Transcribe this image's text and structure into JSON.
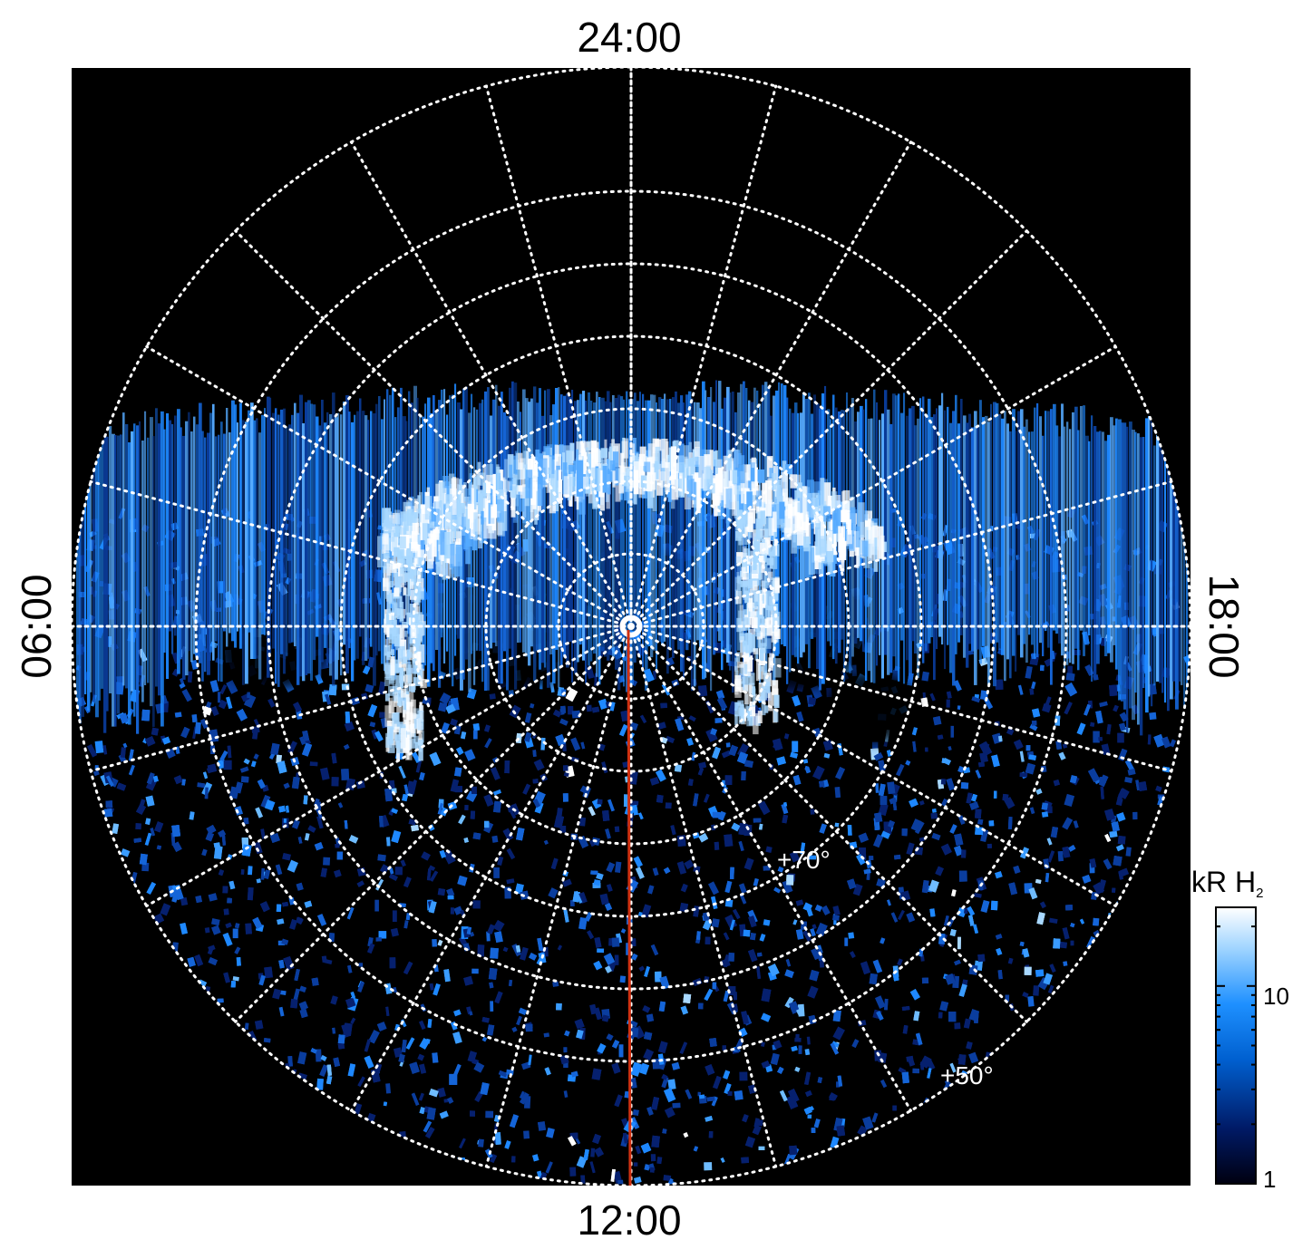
{
  "labels": {
    "top": "24:00",
    "bottom": "12:00",
    "left": "06:00",
    "right": "18:00",
    "lat70": "+70°",
    "lat50": "+50°"
  },
  "colorbar": {
    "title_main": "kR H",
    "title_sub": "2",
    "tick_labels": [
      "10",
      "1"
    ],
    "scale": "log",
    "colors": [
      "#000010",
      "#001a66",
      "#0060d0",
      "#1e90ff",
      "#9fd4ff",
      "#ffffff"
    ]
  },
  "image": {
    "background": "#000000",
    "grid_color": "#ffffff",
    "meridian_color": "#d03010",
    "aurora_colors": [
      "#0a3d9e",
      "#1565d8",
      "#1e88ff",
      "#55aaff",
      "#a8d8ff",
      "#ffffff"
    ]
  }
}
